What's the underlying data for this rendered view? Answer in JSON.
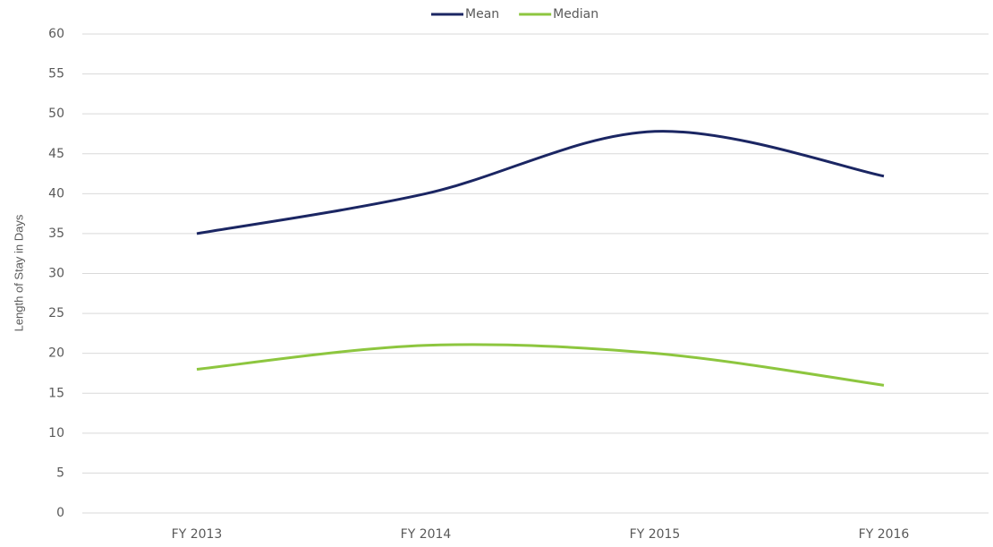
{
  "chart_data": {
    "type": "line",
    "y_axis_label": "Length of Stay in Days",
    "categories": [
      "FY 2013",
      "FY 2014",
      "FY 2015",
      "FY 2016"
    ],
    "series": [
      {
        "name": "Mean",
        "color": "#1b2663",
        "values": [
          35,
          40,
          47.8,
          42.2
        ]
      },
      {
        "name": "Median",
        "color": "#8dc63f",
        "values": [
          18,
          21,
          20,
          16
        ]
      }
    ],
    "ylim": [
      0,
      60
    ],
    "yticks": [
      0,
      5,
      10,
      15,
      20,
      25,
      30,
      35,
      40,
      45,
      50,
      55,
      60
    ],
    "grid": true,
    "smooth": true,
    "legend": "top"
  }
}
